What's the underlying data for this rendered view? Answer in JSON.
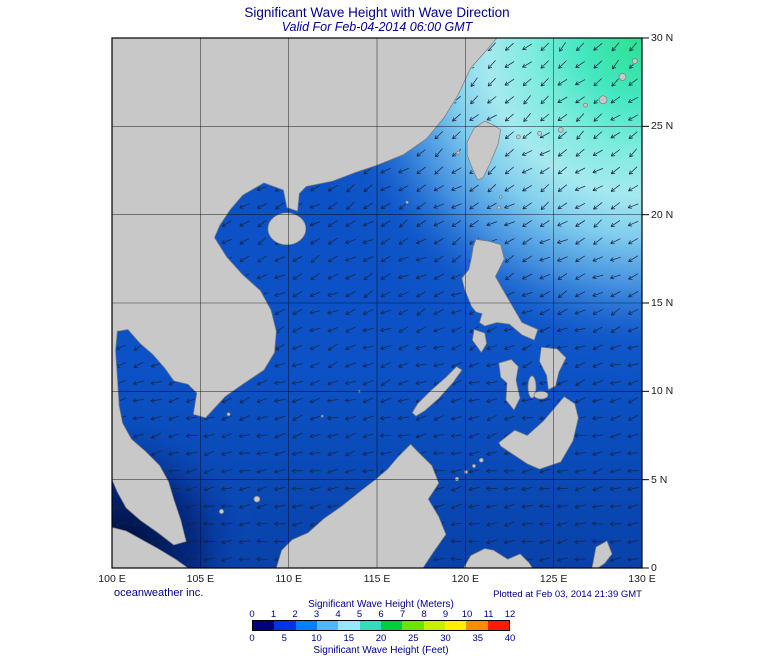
{
  "title": "Significant Wave Height with Wave Direction",
  "subtitle": "Valid For Feb-04-2014 06:00 GMT",
  "credits": {
    "left": "oceanweather inc.",
    "right": "Plotted at Feb 03, 2014 21:39 GMT"
  },
  "map": {
    "lon_ticks": [
      "100 E",
      "105 E",
      "110 E",
      "115 E",
      "120 E",
      "125 E",
      "130 E"
    ],
    "lat_ticks": [
      "30 N",
      "25 N",
      "20 N",
      "15 N",
      "10 N",
      "5 N",
      "0"
    ],
    "lon_range_deg": [
      100,
      130
    ],
    "lat_range_deg": [
      0,
      30
    ],
    "grid_interval_deg": 5,
    "wave_arrows": {
      "spacing_deg": 1,
      "general_direction": "southwest"
    }
  },
  "legend": {
    "meters_title": "Significant Wave Height (Meters)",
    "feet_title": "Significant Wave Height (Feet)",
    "meters_ticks": [
      "0",
      "1",
      "2",
      "3",
      "4",
      "5",
      "6",
      "7",
      "8",
      "9",
      "10",
      "11",
      "12"
    ],
    "feet_ticks": [
      "0",
      "5",
      "10",
      "15",
      "20",
      "25",
      "30",
      "35",
      "40"
    ],
    "segment_colors": [
      "#000080",
      "#0033e6",
      "#0080ff",
      "#4db8ff",
      "#99e6ff",
      "#33ddbb",
      "#00cc44",
      "#66e600",
      "#c8f000",
      "#ffee00",
      "#ff8c00",
      "#ff1a00"
    ]
  },
  "colors": {
    "text_navy": "#00008b",
    "ocean_base": "#0c52c6",
    "land_gray": "#c8c8c8",
    "high_wave_green": "#2be18e",
    "calm_navy": "#000d38"
  }
}
